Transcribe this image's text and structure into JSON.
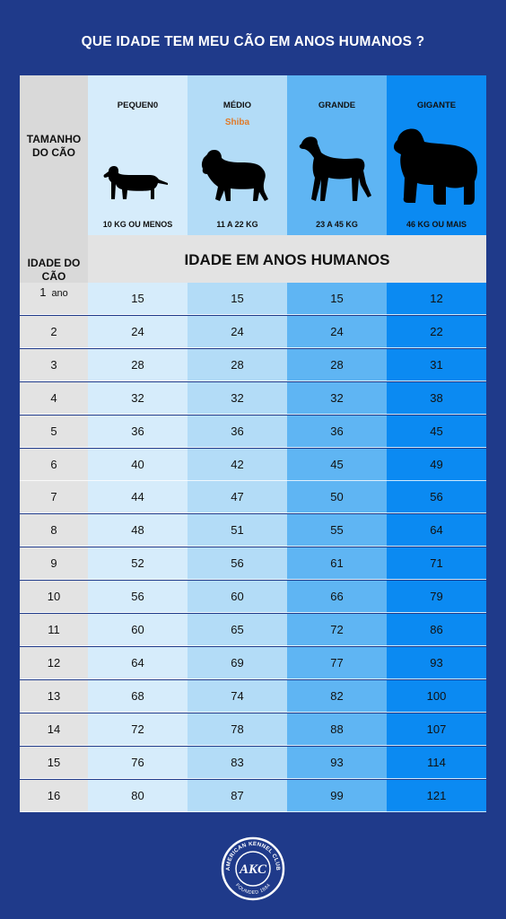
{
  "title": "QUE IDADE TEM MEU CÃO EM ANOS HUMANOS ?",
  "colors": {
    "background": "#1f3a8a",
    "small": "#d6ecfb",
    "medium": "#b3dcf7",
    "large": "#5fb5f3",
    "giant": "#0b8af2",
    "label_cells": "#d9d9d9"
  },
  "header": {
    "size_label": "TAMANHO DO CÃO",
    "age_label": "IDADE DO CÃO",
    "human_age_label": "IDADE EM ANOS HUMANOS"
  },
  "sizes": [
    {
      "name": "PEQUEN0",
      "example": "",
      "weight": "10 KG OU MENOS",
      "icon": "dachshund-silhouette-icon"
    },
    {
      "name": "MÉDIO",
      "example": "Shiba",
      "weight": "11 A 22 KG",
      "icon": "spaniel-silhouette-icon"
    },
    {
      "name": "GRANDE",
      "example": "",
      "weight": "23 A 45 KG",
      "icon": "pointer-silhouette-icon"
    },
    {
      "name": "GIGANTE",
      "example": "",
      "weight": "46 KG OU MAIS",
      "icon": "newfoundland-silhouette-icon"
    }
  ],
  "chart_data": {
    "type": "table",
    "title": "QUE IDADE TEM MEU CÃO EM ANOS HUMANOS ?",
    "columns": [
      "PEQUEN0",
      "MÉDIO",
      "GRANDE",
      "GIGANTE"
    ],
    "rows": [
      {
        "age": "1",
        "unit": "ano",
        "values": [
          15,
          15,
          15,
          12
        ]
      },
      {
        "age": "2",
        "values": [
          24,
          24,
          24,
          22
        ]
      },
      {
        "age": "3",
        "values": [
          28,
          28,
          28,
          31
        ]
      },
      {
        "age": "4",
        "values": [
          32,
          32,
          32,
          38
        ]
      },
      {
        "age": "5",
        "values": [
          36,
          36,
          36,
          45
        ]
      },
      {
        "age": "6",
        "values": [
          40,
          42,
          45,
          49
        ]
      },
      {
        "age": "7",
        "values": [
          44,
          47,
          50,
          56
        ]
      },
      {
        "age": "8",
        "values": [
          48,
          51,
          55,
          64
        ]
      },
      {
        "age": "9",
        "values": [
          52,
          56,
          61,
          71
        ]
      },
      {
        "age": "10",
        "values": [
          56,
          60,
          66,
          79
        ]
      },
      {
        "age": "11",
        "values": [
          60,
          65,
          72,
          86
        ]
      },
      {
        "age": "12",
        "values": [
          64,
          69,
          77,
          93
        ]
      },
      {
        "age": "13",
        "values": [
          68,
          74,
          82,
          100
        ]
      },
      {
        "age": "14",
        "values": [
          72,
          78,
          88,
          107
        ]
      },
      {
        "age": "15",
        "values": [
          76,
          83,
          93,
          114
        ]
      },
      {
        "age": "16",
        "values": [
          80,
          87,
          99,
          121
        ]
      }
    ]
  },
  "logo": {
    "text": "AKC",
    "ring_top": "AMERICAN KENNEL CLUB",
    "ring_bottom": "FOUNDED 1884",
    "icon": "akc-seal-logo"
  }
}
